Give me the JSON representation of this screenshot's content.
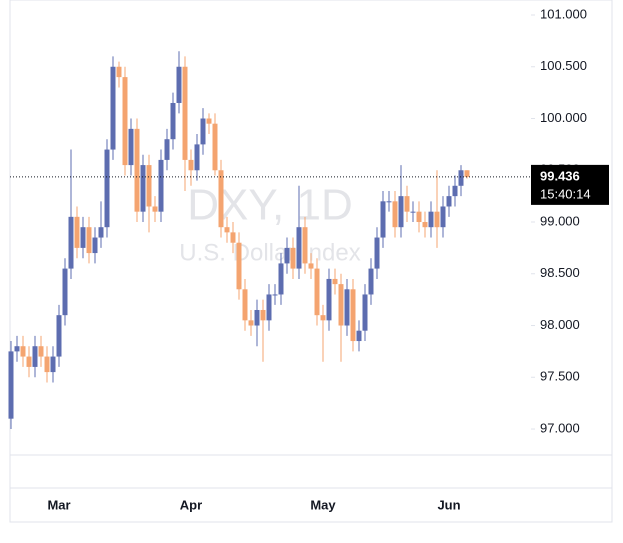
{
  "chart_data": {
    "type": "candlestick",
    "title": "DXY, 1D",
    "subtitle": "U.S. Dollar Index",
    "last_price": {
      "value": 99.436,
      "label": "99.436"
    },
    "countdown": "15:40:14",
    "up_color": "#5d6db0",
    "down_color": "#f4a470",
    "ylim": [
      96.749,
      101.145
    ],
    "yticks": [
      {
        "value": 97,
        "label": "97.000"
      },
      {
        "value": 97.5,
        "label": "97.500"
      },
      {
        "value": 98,
        "label": "98.000"
      },
      {
        "value": 98.5,
        "label": "98.500"
      },
      {
        "value": 99,
        "label": "99.000"
      },
      {
        "value": 99.5,
        "label": "99.500"
      },
      {
        "value": 100,
        "label": "100.000"
      },
      {
        "value": 100.5,
        "label": "100.500"
      },
      {
        "value": 101,
        "label": "101.000"
      }
    ],
    "categories": [
      null,
      null,
      null,
      null,
      null,
      null,
      null,
      null,
      "Mar",
      null,
      null,
      null,
      null,
      null,
      null,
      null,
      null,
      null,
      null,
      null,
      null,
      null,
      null,
      null,
      null,
      null,
      null,
      null,
      null,
      null,
      "Apr",
      null,
      null,
      null,
      null,
      null,
      null,
      null,
      null,
      null,
      null,
      null,
      null,
      null,
      null,
      null,
      null,
      null,
      null,
      null,
      null,
      null,
      "May",
      null,
      null,
      null,
      null,
      null,
      null,
      null,
      null,
      null,
      null,
      null,
      null,
      null,
      null,
      null,
      null,
      null,
      null,
      null,
      null,
      "Jun",
      null,
      null,
      null
    ],
    "open": [
      97.1,
      97.75,
      97.8,
      97.7,
      97.6,
      97.8,
      97.7,
      97.55,
      97.7,
      98.1,
      98.55,
      99.05,
      98.75,
      98.95,
      98.7,
      98.85,
      98.95,
      99.7,
      100.5,
      100.4,
      99.55,
      99.9,
      99.1,
      99.55,
      99.15,
      99.1,
      99.6,
      99.8,
      100.15,
      100.5,
      99.6,
      99.5,
      99.75,
      100.0,
      99.95,
      99.5,
      98.95,
      98.9,
      98.8,
      98.35,
      98.05,
      98.0,
      98.15,
      98.05,
      98.3,
      98.3,
      98.6,
      98.75,
      98.55,
      98.95,
      98.6,
      98.55,
      98.1,
      98.05,
      98.45,
      98.4,
      98.0,
      98.35,
      97.85,
      97.95,
      98.3,
      98.55,
      98.85,
      99.2,
      99.2,
      98.95,
      99.25,
      99.1,
      99.1,
      99.0,
      98.95,
      99.1,
      98.95,
      99.15,
      99.25,
      99.35,
      99.5
    ],
    "high": [
      97.85,
      97.9,
      97.9,
      97.8,
      97.9,
      97.9,
      97.8,
      97.8,
      98.2,
      98.65,
      99.7,
      99.15,
      99.05,
      99.05,
      98.95,
      99.2,
      99.8,
      100.6,
      100.55,
      100.5,
      100.0,
      100.0,
      99.65,
      99.65,
      99.25,
      99.7,
      99.9,
      100.25,
      100.65,
      100.6,
      99.7,
      99.85,
      100.1,
      100.05,
      100.05,
      99.6,
      99.05,
      99.0,
      98.9,
      98.45,
      98.15,
      98.25,
      98.25,
      98.4,
      98.4,
      98.7,
      98.85,
      98.85,
      99.35,
      99.05,
      98.7,
      98.65,
      98.2,
      98.55,
      98.55,
      98.5,
      98.45,
      98.45,
      98.05,
      98.4,
      98.65,
      98.95,
      99.3,
      99.3,
      99.3,
      99.55,
      99.35,
      99.2,
      99.2,
      99.1,
      99.2,
      99.5,
      99.25,
      99.35,
      99.45,
      99.55,
      99.5
    ],
    "low": [
      97.0,
      97.65,
      97.6,
      97.5,
      97.5,
      97.6,
      97.45,
      97.45,
      97.6,
      98.0,
      98.45,
      98.65,
      98.65,
      98.6,
      98.6,
      98.75,
      98.85,
      99.6,
      100.3,
      99.45,
      99.45,
      99.0,
      99.0,
      98.9,
      99.0,
      99.0,
      99.5,
      99.7,
      100.05,
      99.3,
      99.35,
      99.4,
      99.65,
      99.85,
      99.45,
      98.85,
      98.8,
      98.7,
      98.25,
      97.95,
      97.9,
      97.8,
      97.65,
      97.95,
      98.2,
      98.2,
      98.5,
      98.45,
      98.45,
      98.5,
      98.45,
      98.0,
      97.65,
      97.95,
      98.3,
      97.65,
      97.9,
      97.75,
      97.75,
      97.85,
      98.2,
      98.45,
      98.75,
      99.1,
      98.85,
      98.85,
      99.0,
      99.0,
      98.9,
      98.85,
      98.85,
      98.75,
      98.85,
      99.05,
      99.15,
      99.25,
      99.42
    ],
    "close": [
      97.75,
      97.8,
      97.7,
      97.6,
      97.8,
      97.7,
      97.55,
      97.7,
      98.1,
      98.55,
      99.05,
      98.75,
      98.95,
      98.7,
      98.85,
      98.95,
      99.7,
      100.5,
      100.4,
      99.55,
      99.9,
      99.1,
      99.55,
      99.15,
      99.1,
      99.6,
      99.8,
      100.15,
      100.5,
      99.6,
      99.5,
      99.75,
      100.0,
      99.95,
      99.5,
      98.95,
      98.9,
      98.8,
      98.35,
      98.05,
      98.0,
      98.15,
      98.05,
      98.3,
      98.3,
      98.6,
      98.75,
      98.55,
      98.95,
      98.6,
      98.55,
      98.1,
      98.05,
      98.45,
      98.4,
      98.0,
      98.35,
      97.85,
      97.95,
      98.3,
      98.55,
      98.85,
      99.2,
      99.2,
      98.95,
      99.25,
      99.1,
      99.1,
      99.0,
      98.95,
      99.1,
      98.95,
      99.15,
      99.25,
      99.35,
      99.5,
      99.436
    ]
  }
}
